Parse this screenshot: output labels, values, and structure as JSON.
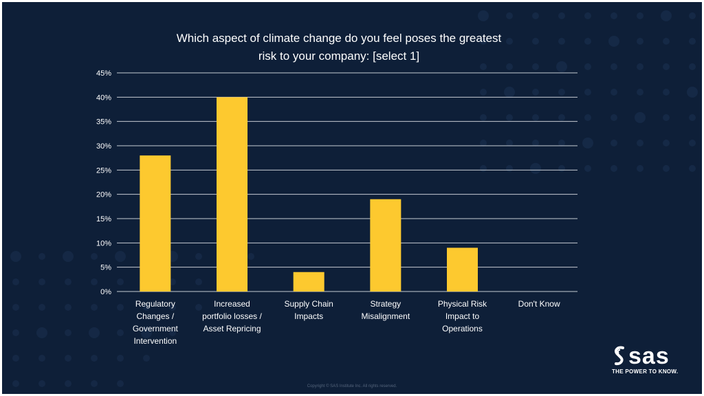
{
  "chart_data": {
    "type": "bar",
    "title_lines": [
      "Which aspect of climate change do you feel poses the greatest",
      "risk to your company: [select 1]"
    ],
    "categories": [
      [
        "Regulatory",
        "Changes /",
        "Government",
        "Intervention"
      ],
      [
        "Increased",
        "portfolio losses /",
        "Asset Repricing"
      ],
      [
        "Supply Chain",
        "Impacts"
      ],
      [
        "Strategy",
        "Misalignment"
      ],
      [
        "Physical Risk",
        "Impact to",
        "Operations"
      ],
      [
        "Don't Know"
      ]
    ],
    "values": [
      28,
      40,
      4,
      19,
      9,
      0
    ],
    "ylim": [
      0,
      45
    ],
    "yticks": [
      0,
      5,
      10,
      15,
      20,
      25,
      30,
      35,
      40,
      45
    ],
    "ytick_suffix": "%",
    "grid": true,
    "bar_color": "#fdc92f",
    "grid_color": "#c7ccd4",
    "label_color": "#ffffff"
  },
  "branding": {
    "logo_text": "sas",
    "tagline": "THE POWER TO KNOW.",
    "copyright": "Copyright © SAS Institute Inc. All rights reserved."
  },
  "colors": {
    "background": "#0e1f38",
    "dot": "#1b3152"
  }
}
